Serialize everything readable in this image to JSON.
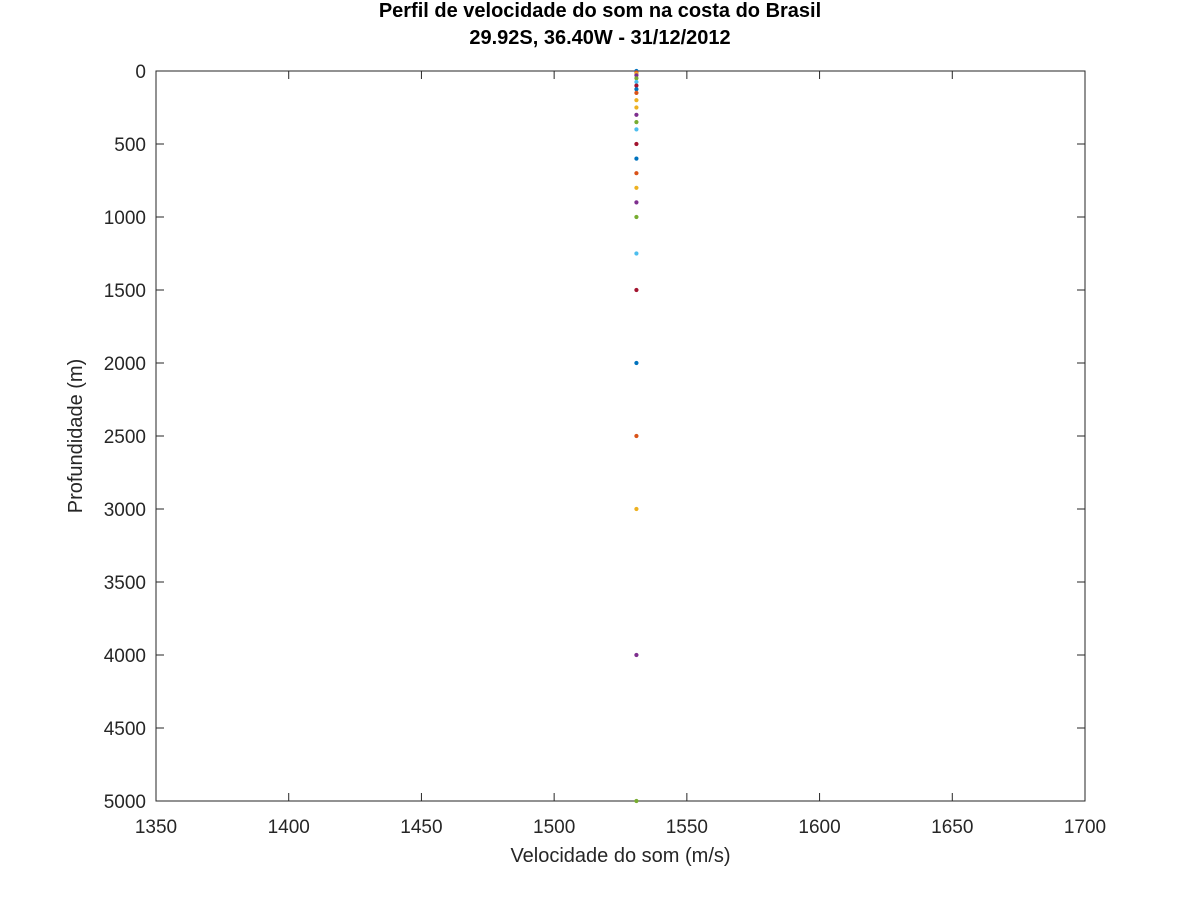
{
  "chart_data": {
    "type": "scatter",
    "title": "Perfil de velocidade do som na costa do Brasil",
    "subtitle": "29.92S, 36.40W - 31/12/2012",
    "xlabel": "Velocidade do som (m/s)",
    "ylabel": "Profundidade (m)",
    "xlim": [
      1350,
      1700
    ],
    "ylim": [
      0,
      5000
    ],
    "y_reversed": true,
    "grid": false,
    "xticks": [
      "1350",
      "1400",
      "1450",
      "1500",
      "1550",
      "1600",
      "1650",
      "1700"
    ],
    "yticks": [
      "0",
      "500",
      "1000",
      "1500",
      "2000",
      "2500",
      "3000",
      "3500",
      "4000",
      "4500",
      "5000"
    ],
    "points": [
      {
        "x": 1531,
        "y": 0,
        "color": "#0072BD"
      },
      {
        "x": 1531,
        "y": 10,
        "color": "#D95319"
      },
      {
        "x": 1531,
        "y": 20,
        "color": "#EDB120"
      },
      {
        "x": 1531,
        "y": 30,
        "color": "#7E2F8E"
      },
      {
        "x": 1531,
        "y": 50,
        "color": "#77AC30"
      },
      {
        "x": 1531,
        "y": 75,
        "color": "#4DBEEE"
      },
      {
        "x": 1531,
        "y": 100,
        "color": "#A2142F"
      },
      {
        "x": 1531,
        "y": 125,
        "color": "#0072BD"
      },
      {
        "x": 1531,
        "y": 150,
        "color": "#D95319"
      },
      {
        "x": 1531,
        "y": 200,
        "color": "#EDB120"
      },
      {
        "x": 1531,
        "y": 250,
        "color": "#EDB120"
      },
      {
        "x": 1531,
        "y": 300,
        "color": "#7E2F8E"
      },
      {
        "x": 1531,
        "y": 350,
        "color": "#77AC30"
      },
      {
        "x": 1531,
        "y": 400,
        "color": "#4DBEEE"
      },
      {
        "x": 1531,
        "y": 500,
        "color": "#A2142F"
      },
      {
        "x": 1531,
        "y": 600,
        "color": "#0072BD"
      },
      {
        "x": 1531,
        "y": 700,
        "color": "#D95319"
      },
      {
        "x": 1531,
        "y": 800,
        "color": "#EDB120"
      },
      {
        "x": 1531,
        "y": 900,
        "color": "#7E2F8E"
      },
      {
        "x": 1531,
        "y": 1000,
        "color": "#77AC30"
      },
      {
        "x": 1531,
        "y": 1250,
        "color": "#4DBEEE"
      },
      {
        "x": 1531,
        "y": 1500,
        "color": "#A2142F"
      },
      {
        "x": 1531,
        "y": 2000,
        "color": "#0072BD"
      },
      {
        "x": 1531,
        "y": 2500,
        "color": "#D95319"
      },
      {
        "x": 1531,
        "y": 3000,
        "color": "#EDB120"
      },
      {
        "x": 1531,
        "y": 4000,
        "color": "#7E2F8E"
      },
      {
        "x": 1531,
        "y": 5000,
        "color": "#77AC30"
      }
    ]
  }
}
